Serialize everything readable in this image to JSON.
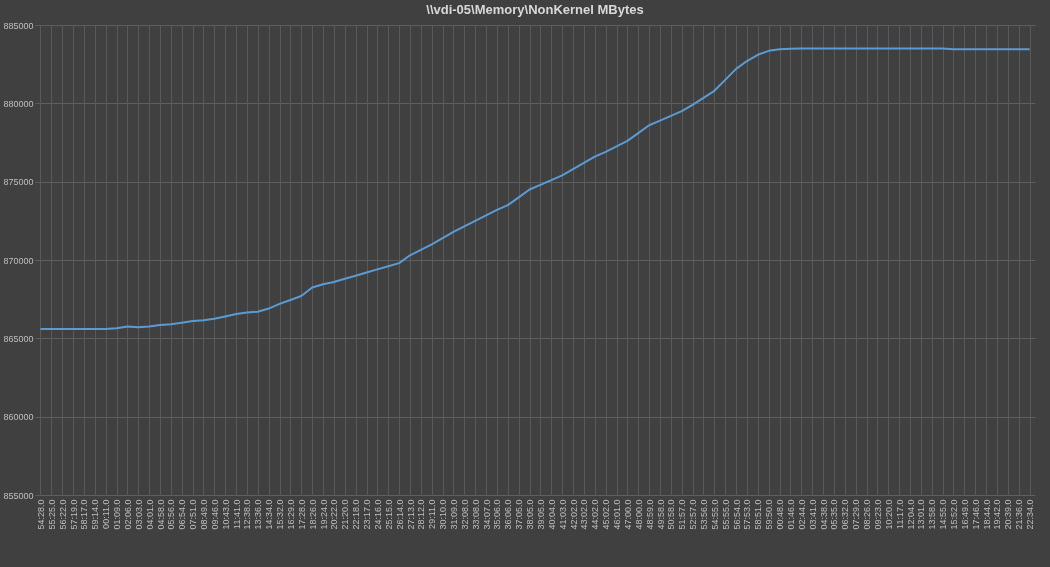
{
  "chart_data": {
    "type": "line",
    "title": "\\\\vdi-05\\Memory\\NonKernel MBytes",
    "categories": [
      "54:28.0",
      "55:25.0",
      "56:22.0",
      "57:19.0",
      "58:17.0",
      "59:14.0",
      "00:11.0",
      "01:09.0",
      "02:06.0",
      "03:03.0",
      "04:01.0",
      "04:58.0",
      "05:56.0",
      "06:54.0",
      "07:51.0",
      "08:49.0",
      "09:46.0",
      "10:43.0",
      "11:41.0",
      "12:38.0",
      "13:36.0",
      "14:34.0",
      "15:32.0",
      "16:29.0",
      "17:28.0",
      "18:26.0",
      "19:24.0",
      "20:22.0",
      "21:20.0",
      "22:18.0",
      "23:17.0",
      "24:16.0",
      "25:15.0",
      "26:14.0",
      "27:13.0",
      "28:12.0",
      "29:11.0",
      "30:10.0",
      "31:09.0",
      "32:08.0",
      "33:08.0",
      "34:07.0",
      "35:06.0",
      "36:06.0",
      "37:05.0",
      "38:05.0",
      "39:05.0",
      "40:04.0",
      "41:03.0",
      "42:02.0",
      "43:02.0",
      "44:02.0",
      "45:02.0",
      "46:01.0",
      "47:00.0",
      "48:00.0",
      "48:59.0",
      "49:58.0",
      "50:58.0",
      "51:57.0",
      "52:57.0",
      "53:56.0",
      "54:55.0",
      "55:55.0",
      "56:54.0",
      "57:53.0",
      "58:51.0",
      "59:50.0",
      "00:48.0",
      "01:46.0",
      "02:44.0",
      "03:41.0",
      "04:38.0",
      "05:35.0",
      "06:32.0",
      "07:29.0",
      "08:26.0",
      "09:23.0",
      "10:20.0",
      "11:17.0",
      "12:04.0",
      "13:01.0",
      "13:58.0",
      "14:55.0",
      "15:52.0",
      "16:49.0",
      "17:46.0",
      "18:44.0",
      "19:42.0",
      "20:39.0",
      "21:36.0",
      "22:34.0"
    ],
    "series": [
      {
        "color": "#5b9bd5",
        "values": [
          865600,
          865600,
          865600,
          865600,
          865600,
          865600,
          865600,
          865650,
          865750,
          865700,
          865750,
          865850,
          865900,
          866000,
          866100,
          866150,
          866250,
          866400,
          866550,
          866650,
          866700,
          866900,
          867200,
          867450,
          867700,
          868250,
          868450,
          868600,
          868800,
          869000,
          869200,
          869400,
          869600,
          869800,
          870300,
          870650,
          871000,
          871400,
          871800,
          872150,
          872500,
          872850,
          873200,
          873500,
          874000,
          874500,
          874800,
          875100,
          875400,
          875800,
          876200,
          876600,
          876900,
          877250,
          877600,
          878100,
          878600,
          878900,
          879200,
          879500,
          879900,
          880350,
          880800,
          881500,
          882200,
          882700,
          883100,
          883350,
          883450,
          883480,
          883500,
          883500,
          883500,
          883500,
          883500,
          883500,
          883500,
          883500,
          883500,
          883500,
          883500,
          883500,
          883500,
          883500,
          883450,
          883450,
          883450,
          883450,
          883450,
          883450,
          883450,
          883450
        ]
      }
    ],
    "ylim": [
      855000,
      885000
    ],
    "yticks": [
      855000,
      860000,
      865000,
      870000,
      875000,
      880000,
      885000
    ],
    "grid": true
  }
}
